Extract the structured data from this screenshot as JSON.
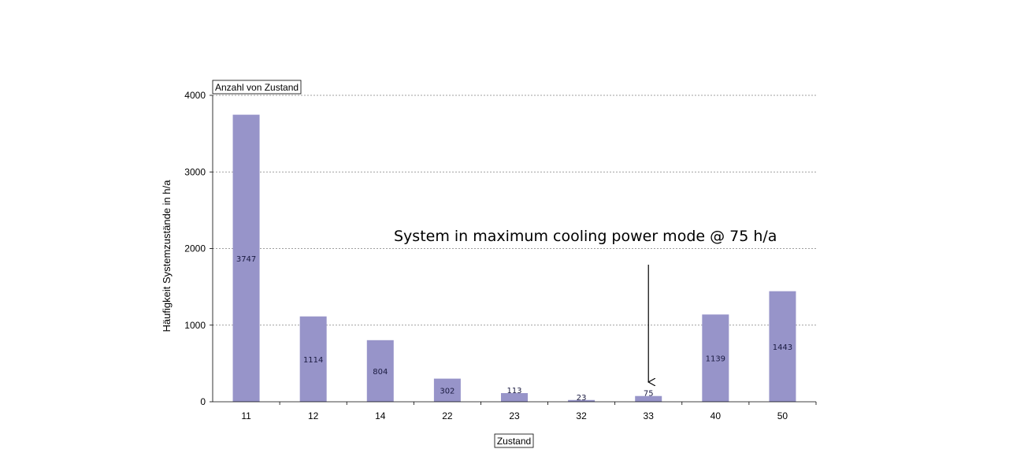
{
  "chart_data": {
    "type": "bar",
    "title": "Anzahl von Zustand",
    "xlabel": "Zustand",
    "ylabel": "Häufigkeit Systemzustände in h/a",
    "categories": [
      "11",
      "12",
      "14",
      "22",
      "23",
      "32",
      "33",
      "40",
      "50"
    ],
    "values": [
      3747,
      1114,
      804,
      302,
      113,
      23,
      75,
      1139,
      1443
    ],
    "ylim": [
      0,
      4000
    ],
    "yticks": [
      0,
      1000,
      2000,
      3000,
      4000
    ],
    "grid": true,
    "legend": "none",
    "bar_color": "#9794c9",
    "annotation": {
      "text": "System in maximum cooling power mode @ 75 h/a",
      "target_category": "33"
    }
  }
}
